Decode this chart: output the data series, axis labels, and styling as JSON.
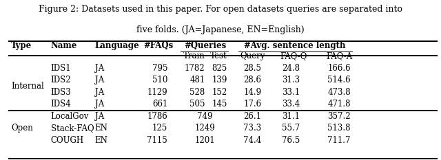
{
  "caption_line1": "Figure 2: Datasets used in this paper. For open datasets queries are separated into",
  "caption_line2": "five folds. (JA=Japanese, EN=English)",
  "internal_rows": [
    [
      "IDS1",
      "JA",
      "795",
      "1782",
      "825",
      "28.5",
      "24.8",
      "166.6"
    ],
    [
      "IDS2",
      "JA",
      "510",
      "481",
      "139",
      "28.6",
      "31.3",
      "514.6"
    ],
    [
      "IDS3",
      "JA",
      "1129",
      "528",
      "152",
      "14.9",
      "33.1",
      "473.8"
    ],
    [
      "IDS4",
      "JA",
      "661",
      "505",
      "145",
      "17.6",
      "33.4",
      "471.8"
    ]
  ],
  "open_rows": [
    [
      "LocalGov",
      "JA",
      "1786",
      "749",
      "26.1",
      "31.1",
      "357.2"
    ],
    [
      "Stack-FAQ",
      "EN",
      "125",
      "1249",
      "73.3",
      "55.7",
      "513.8"
    ],
    [
      "COUGH",
      "EN",
      "7115",
      "1201",
      "74.4",
      "76.5",
      "711.7"
    ]
  ],
  "bg_color": "#ffffff",
  "text_color": "#000000",
  "font_size": 8.5,
  "caption_font_size": 9.0
}
